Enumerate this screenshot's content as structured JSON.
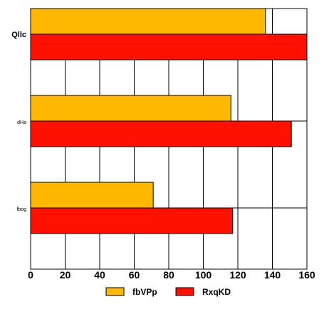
{
  "chart_data": {
    "type": "bar",
    "orientation": "horizontal",
    "categories": [
      "Qllc",
      "dHa",
      "fbog"
    ],
    "series": [
      {
        "name": "fbVPp",
        "color": "#FFB800",
        "values": [
          136,
          116,
          71
        ]
      },
      {
        "name": "RxqKD",
        "color": "#FF1100",
        "values": [
          160,
          151,
          117
        ]
      }
    ],
    "xlim": [
      0,
      160
    ],
    "xticks": [
      0,
      20,
      40,
      60,
      80,
      100,
      120,
      140,
      160
    ],
    "grid": true,
    "legend": "bottom",
    "title": "",
    "xlabel": "",
    "ylabel": ""
  }
}
